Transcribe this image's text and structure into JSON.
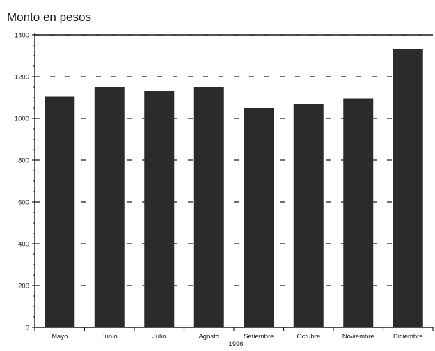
{
  "chart_data": {
    "type": "bar",
    "title": "Monto en pesos",
    "xlabel": "1996",
    "ylabel": "",
    "categories": [
      "Mayo",
      "Junio",
      "Julio",
      "Agosto",
      "Setiembre",
      "Octubre",
      "Noviembre",
      "Diciembre"
    ],
    "values": [
      1105,
      1150,
      1130,
      1150,
      1050,
      1070,
      1095,
      1330
    ],
    "ylim": [
      0,
      1400
    ],
    "yticks": [
      "0",
      "200",
      "400",
      "600",
      "800",
      "1000",
      "1200",
      "1400"
    ],
    "grid": "dashed horizontal lines",
    "colors": {
      "bar": "#2b2b2b",
      "axis": "#1a1a1a",
      "grid": "#1a1a1a"
    }
  }
}
